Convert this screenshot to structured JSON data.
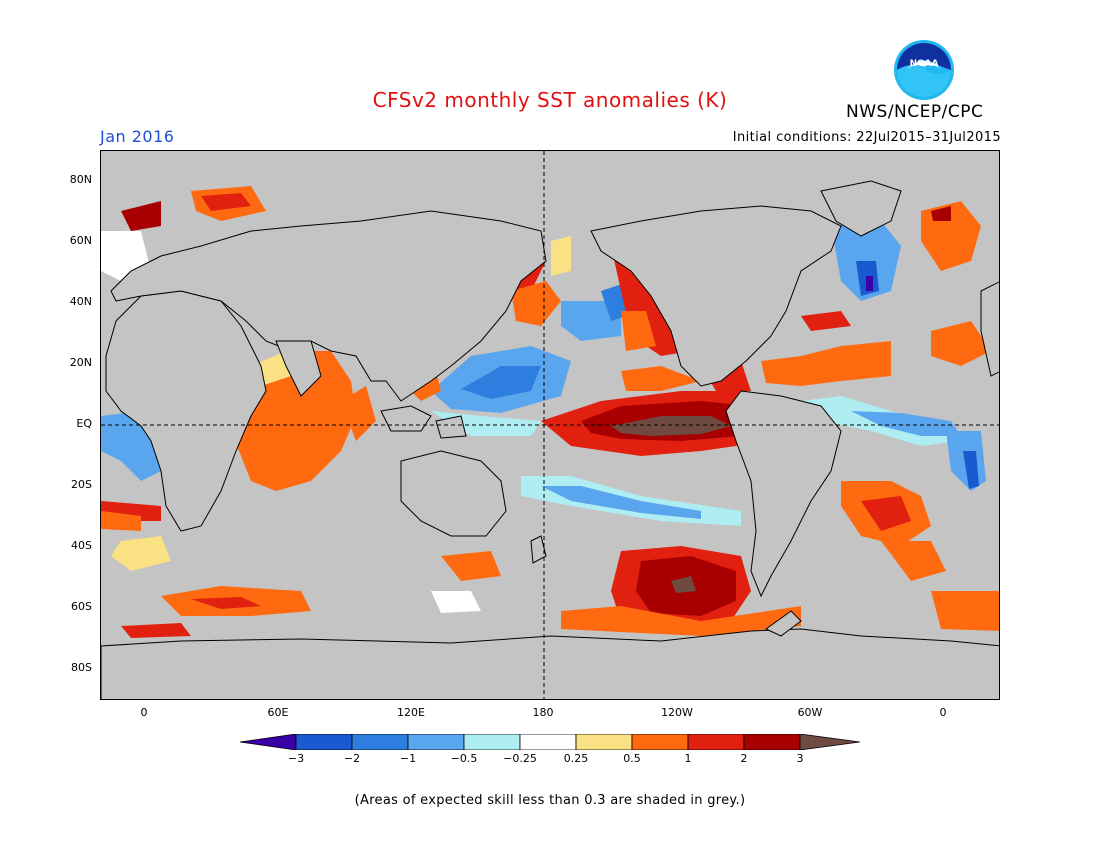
{
  "header": {
    "title": "CFSv2 monthly SST anomalies (K)",
    "agency": "NWS/NCEP/CPC",
    "month": "Jan 2016",
    "initial_conditions": "Initial conditions: 22Jul2015–31Jul2015"
  },
  "logo": {
    "icon": "noaa-logo-icon",
    "text": "NOAA"
  },
  "map": {
    "lat_labels": [
      "80N",
      "60N",
      "40N",
      "20N",
      "EQ",
      "20S",
      "40S",
      "60S",
      "80S"
    ],
    "lon_labels": [
      "0",
      "60E",
      "120E",
      "180",
      "120W",
      "60W",
      "0"
    ],
    "land_color": "#c4c4c4",
    "ocean_grey": "#c4c4c4",
    "reference_lines": "equator and dateline, dashed"
  },
  "colorbar": {
    "ticks": [
      "−3",
      "−2",
      "−1",
      "−0.5",
      "−0.25",
      "0.25",
      "0.5",
      "1",
      "2",
      "3"
    ],
    "colors": [
      "#3a00a8",
      "#1a5ad0",
      "#2e7ee0",
      "#5aa6ee",
      "#aeeef2",
      "#ffffff",
      "#fae184",
      "#ff6a10",
      "#e22010",
      "#a80000",
      "#6e4a40"
    ]
  },
  "footnote": "(Areas of expected skill less than 0.3 are shaded in grey.)"
}
